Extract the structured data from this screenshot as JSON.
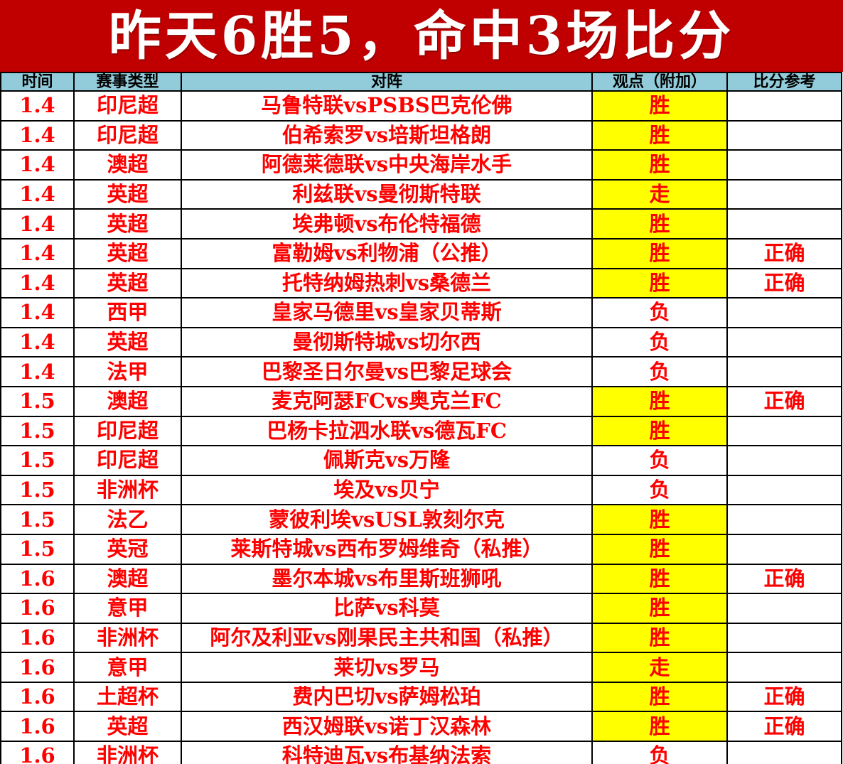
{
  "banner": {
    "title": "昨天6胜5，命中3场比分",
    "bg_color": "#C00000",
    "text_color": "#FFFFFF"
  },
  "table": {
    "header_bg_color": "#92CCDA",
    "highlight_bg_color": "#FFFF00",
    "text_color_red": "#FE0000",
    "text_color_black": "#000000",
    "columns": {
      "time": "时间",
      "league": "赛事类型",
      "match": "对阵",
      "verdict": "观点（附加）",
      "score_ref": "比分参考"
    },
    "rows": [
      {
        "time": "1.4",
        "league": "印尼超",
        "match": "马鲁特联vsPSBS巴克伦佛",
        "verdict": "胜",
        "highlight": true,
        "score_ref": ""
      },
      {
        "time": "1.4",
        "league": "印尼超",
        "match": "伯希索罗vs培斯坦格朗",
        "verdict": "胜",
        "highlight": true,
        "score_ref": ""
      },
      {
        "time": "1.4",
        "league": "澳超",
        "match": "阿德莱德联vs中央海岸水手",
        "verdict": "胜",
        "highlight": true,
        "score_ref": ""
      },
      {
        "time": "1.4",
        "league": "英超",
        "match": "利兹联vs曼彻斯特联",
        "verdict": "走",
        "highlight": true,
        "score_ref": ""
      },
      {
        "time": "1.4",
        "league": "英超",
        "match": "埃弗顿vs布伦特福德",
        "verdict": "胜",
        "highlight": true,
        "score_ref": ""
      },
      {
        "time": "1.4",
        "league": "英超",
        "match": "富勒姆vs利物浦（公推）",
        "verdict": "胜",
        "highlight": true,
        "score_ref": "正确"
      },
      {
        "time": "1.4",
        "league": "英超",
        "match": "托特纳姆热刺vs桑德兰",
        "verdict": "胜",
        "highlight": true,
        "score_ref": "正确"
      },
      {
        "time": "1.4",
        "league": "西甲",
        "match": "皇家马德里vs皇家贝蒂斯",
        "verdict": "负",
        "highlight": false,
        "score_ref": ""
      },
      {
        "time": "1.4",
        "league": "英超",
        "match": "曼彻斯特城vs切尔西",
        "verdict": "负",
        "highlight": false,
        "score_ref": ""
      },
      {
        "time": "1.4",
        "league": "法甲",
        "match": "巴黎圣日尔曼vs巴黎足球会",
        "verdict": "负",
        "highlight": false,
        "score_ref": ""
      },
      {
        "time": "1.5",
        "league": "澳超",
        "match": "麦克阿瑟FCvs奥克兰FC",
        "verdict": "胜",
        "highlight": true,
        "score_ref": "正确"
      },
      {
        "time": "1.5",
        "league": "印尼超",
        "match": "巴杨卡拉泗水联vs德瓦FC",
        "verdict": "胜",
        "highlight": true,
        "score_ref": ""
      },
      {
        "time": "1.5",
        "league": "印尼超",
        "match": "佩斯克vs万隆",
        "verdict": "负",
        "highlight": false,
        "score_ref": ""
      },
      {
        "time": "1.5",
        "league": "非洲杯",
        "match": "埃及vs贝宁",
        "verdict": "负",
        "highlight": false,
        "score_ref": ""
      },
      {
        "time": "1.5",
        "league": "法乙",
        "match": "蒙彼利埃vsUSL敦刻尔克",
        "verdict": "胜",
        "highlight": true,
        "score_ref": ""
      },
      {
        "time": "1.5",
        "league": "英冠",
        "match": "莱斯特城vs西布罗姆维奇（私推）",
        "verdict": "胜",
        "highlight": true,
        "score_ref": ""
      },
      {
        "time": "1.6",
        "league": "澳超",
        "match": "墨尔本城vs布里斯班狮吼",
        "verdict": "胜",
        "highlight": true,
        "score_ref": "正确"
      },
      {
        "time": "1.6",
        "league": "意甲",
        "match": "比萨vs科莫",
        "verdict": "胜",
        "highlight": true,
        "score_ref": ""
      },
      {
        "time": "1.6",
        "league": "非洲杯",
        "match": "阿尔及利亚vs刚果民主共和国（私推）",
        "verdict": "胜",
        "highlight": true,
        "score_ref": ""
      },
      {
        "time": "1.6",
        "league": "意甲",
        "match": "莱切vs罗马",
        "verdict": "走",
        "highlight": true,
        "score_ref": ""
      },
      {
        "time": "1.6",
        "league": "土超杯",
        "match": "费内巴切vs萨姆松珀",
        "verdict": "胜",
        "highlight": true,
        "score_ref": "正确"
      },
      {
        "time": "1.6",
        "league": "英超",
        "match": "西汉姆联vs诺丁汉森林",
        "verdict": "胜",
        "highlight": true,
        "score_ref": "正确"
      },
      {
        "time": "1.6",
        "league": "非洲杯",
        "match": "科特迪瓦vs布基纳法索",
        "verdict": "负",
        "highlight": false,
        "score_ref": ""
      }
    ]
  }
}
